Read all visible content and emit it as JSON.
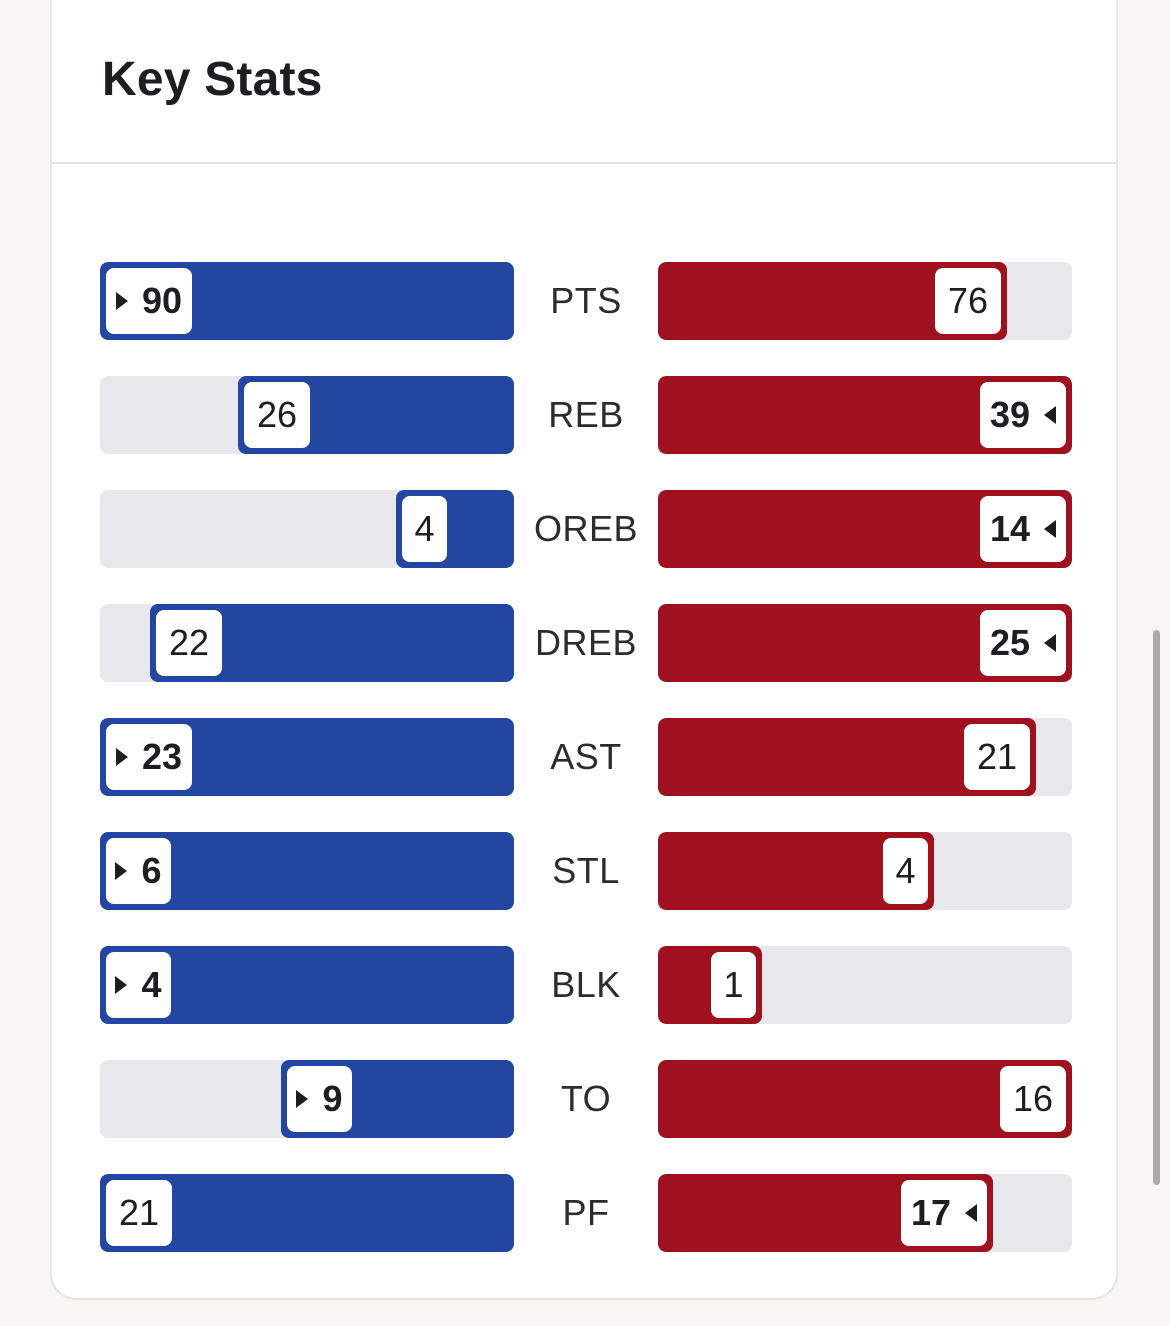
{
  "header": {
    "title": "Key Stats"
  },
  "chart_data": {
    "type": "bar",
    "categories": [
      "PTS",
      "REB",
      "OREB",
      "DREB",
      "AST",
      "STL",
      "BLK",
      "TO",
      "PF"
    ],
    "series": [
      {
        "values": [
          90,
          26,
          4,
          22,
          23,
          6,
          4,
          9,
          21
        ],
        "leads": [
          true,
          false,
          false,
          false,
          true,
          true,
          true,
          true,
          false
        ]
      },
      {
        "values": [
          76,
          39,
          14,
          25,
          21,
          4,
          1,
          16,
          17
        ],
        "leads": [
          false,
          true,
          true,
          true,
          false,
          false,
          false,
          false,
          true
        ]
      }
    ],
    "fill_fraction": {
      "left": [
        1.0,
        0.667,
        0.286,
        0.88,
        1.0,
        1.0,
        1.0,
        0.563,
        1.0
      ],
      "right": [
        0.844,
        1.0,
        1.0,
        1.0,
        0.913,
        0.667,
        0.25,
        1.0,
        0.81
      ]
    }
  }
}
